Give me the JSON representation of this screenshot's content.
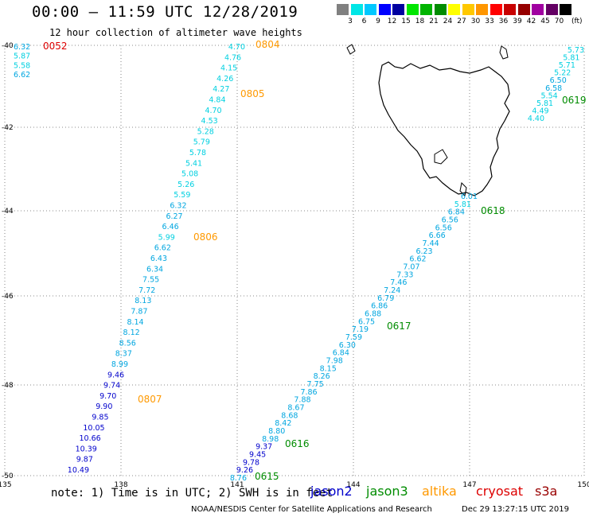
{
  "header": {
    "title": "00:00 – 11:59 UTC 12/28/2019",
    "subtitle": "12 hour collection of altimeter wave heights"
  },
  "colorbar": {
    "labels": [
      "3",
      "6",
      "9",
      "12",
      "15",
      "18",
      "21",
      "24",
      "27",
      "30",
      "33",
      "36",
      "39",
      "42",
      "45",
      "70"
    ],
    "unit": "(ft)",
    "colors": [
      "#808080",
      "#00e6e6",
      "#00c8ff",
      "#0000ff",
      "#0000a0",
      "#00e600",
      "#00b400",
      "#008c00",
      "#ffff00",
      "#ffc800",
      "#ff9600",
      "#ff0000",
      "#c80000",
      "#960000",
      "#a000a0",
      "#640064",
      "#000000"
    ]
  },
  "axes": {
    "lon_labels": [
      "135",
      "138",
      "141",
      "144",
      "147",
      "150"
    ],
    "lat_labels": [
      "-40",
      "-42",
      "-44",
      "-46",
      "-48",
      "-50"
    ]
  },
  "footer": {
    "note": "note:  1) Time is in UTC; 2) SWH is in feet",
    "credit": "NOAA/NESDIS Center for Satellite Applications and Research",
    "timestamp": "Dec 29 13:27:15 UTC 2019"
  },
  "satellites": [
    {
      "name": "jason2",
      "color": "#0000cc"
    },
    {
      "name": "jason3",
      "color": "#008c00"
    },
    {
      "name": "altika",
      "color": "#ff9900"
    },
    {
      "name": "cryosat",
      "color": "#dd0000"
    },
    {
      "name": "s3a",
      "color": "#990000"
    }
  ],
  "tracks": [
    {
      "id": "track-west-topleft",
      "values": [
        "6.32",
        "5.87",
        "5.58",
        "6.62"
      ],
      "times": [
        {
          "label": "0052",
          "color": "#dd0000"
        }
      ]
    },
    {
      "id": "track-altika",
      "values": [
        "4.70",
        "4.76",
        "4.15",
        "4.26",
        "4.27",
        "4.84",
        "4.70",
        "4.53",
        "5.28",
        "5.79",
        "5.78",
        "5.41",
        "5.08",
        "5.26",
        "5.59",
        "6.32",
        "6.27",
        "6.46",
        "5.99",
        "6.62",
        "6.43",
        "6.34",
        "7.55",
        "7.72",
        "8.13",
        "7.87",
        "8.14",
        "8.12",
        "8.56",
        "8.37",
        "8.99",
        "9.46",
        "9.74",
        "9.70",
        "9.90",
        "9.85",
        "10.05",
        "10.66",
        "10.39",
        "9.87",
        "10.49"
      ],
      "times": [
        {
          "label": "0804",
          "color": "#ff9900"
        },
        {
          "label": "0805",
          "color": "#ff9900"
        },
        {
          "label": "0806",
          "color": "#ff9900"
        },
        {
          "label": "0807",
          "color": "#ff9900"
        }
      ]
    },
    {
      "id": "track-jason3",
      "values": [
        "8.76",
        "9.26",
        "9.78",
        "9.45",
        "9.37",
        "8.98",
        "8.80",
        "8.42",
        "8.68",
        "8.67",
        "7.88",
        "7.86",
        "7.75",
        "8.26",
        "8.15",
        "7.98",
        "6.84",
        "6.30",
        "7.59",
        "7.19",
        "6.75",
        "6.88",
        "6.86",
        "6.79",
        "7.24",
        "7.46",
        "7.33",
        "7.07",
        "6.62",
        "6.23",
        "7.44",
        "6.66",
        "6.56",
        "6.56",
        "6.84",
        "5.81",
        "6.01"
      ],
      "times": [
        {
          "label": "0615",
          "color": "#008c00"
        },
        {
          "label": "0616",
          "color": "#008c00"
        },
        {
          "label": "0617",
          "color": "#008c00"
        },
        {
          "label": "0618",
          "color": "#008c00"
        }
      ]
    },
    {
      "id": "track-east",
      "values": [
        "5.73",
        "5.81",
        "5.71",
        "5.22",
        "6.50",
        "6.58",
        "5.54",
        "5.81",
        "4.49",
        "4.40"
      ],
      "times": [
        {
          "label": "0619",
          "color": "#008c00"
        }
      ]
    }
  ]
}
